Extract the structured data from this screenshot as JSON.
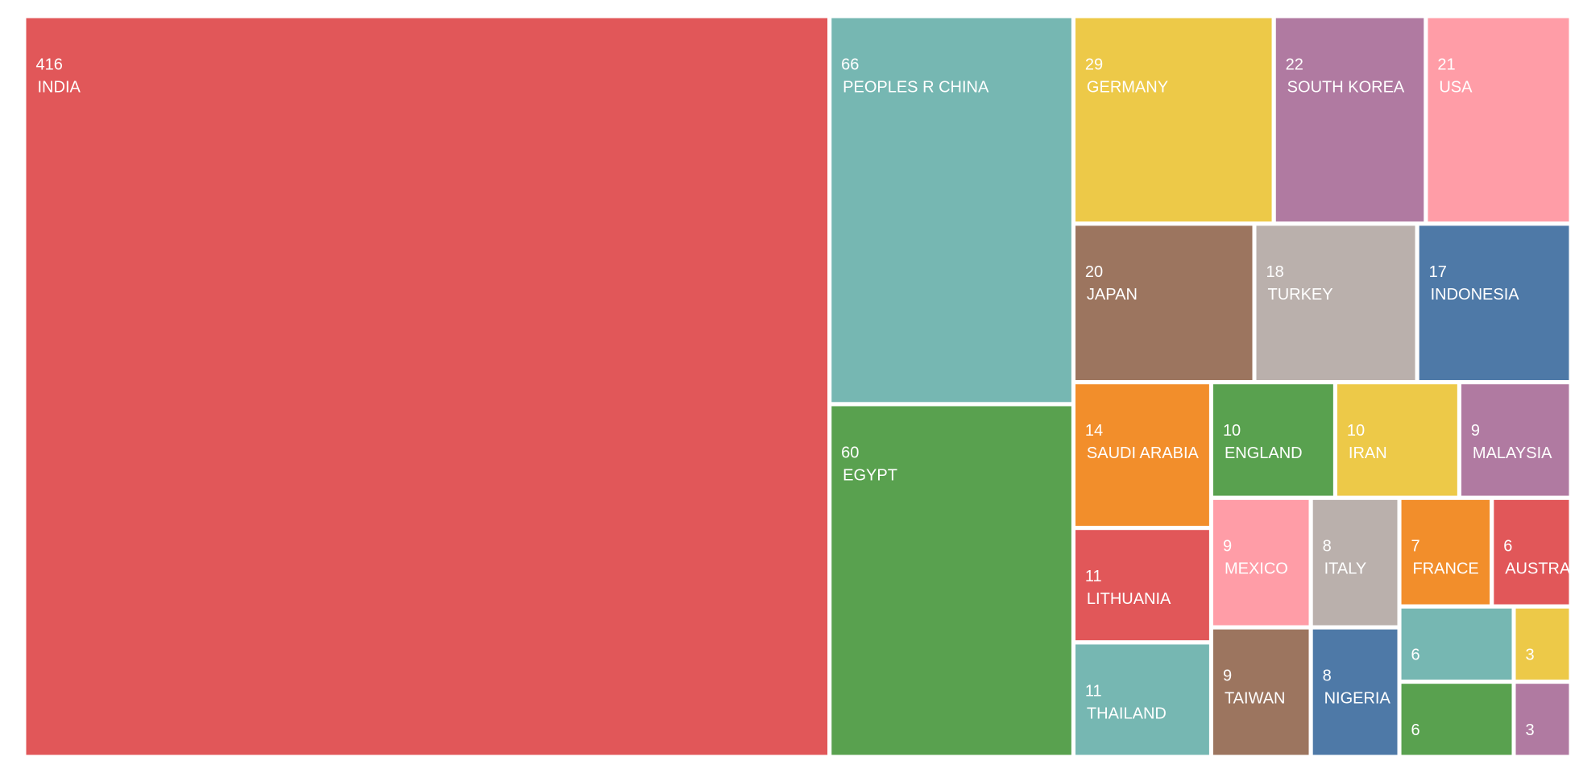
{
  "chart_data": {
    "type": "treemap",
    "categories": [
      "INDIA",
      "PEOPLES R CHINA",
      "EGYPT",
      "GERMANY",
      "SOUTH KOREA",
      "USA",
      "JAPAN",
      "TURKEY",
      "INDONESIA",
      "SAUDI ARABIA",
      "LITHUANIA",
      "THAILAND",
      "ENGLAND",
      "IRAN",
      "MALAYSIA",
      "MEXICO",
      "TAIWAN",
      "ITALY",
      "NIGERIA",
      "FRANCE",
      "AUSTRALIA",
      null,
      null,
      null,
      null
    ],
    "values": [
      416,
      66,
      60,
      29,
      22,
      21,
      20,
      18,
      17,
      14,
      11,
      11,
      10,
      10,
      9,
      9,
      9,
      8,
      8,
      7,
      6,
      6,
      6,
      3,
      3
    ],
    "colors": [
      "#e15759",
      "#76b7b2",
      "#59a14f",
      "#edc948",
      "#b07aa1",
      "#ff9da7",
      "#9c755f",
      "#bab0ac",
      "#4e79a7",
      "#f28e2b"
    ]
  }
}
